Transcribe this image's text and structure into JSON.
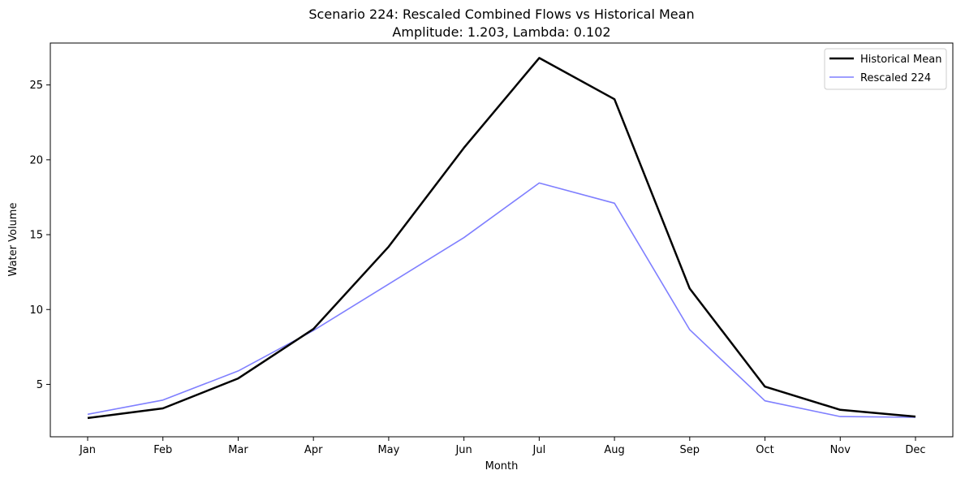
{
  "chart_data": {
    "type": "line",
    "title": "Scenario 224: Rescaled Combined Flows vs Historical Mean",
    "subtitle": "Amplitude: 1.203, Lambda: 0.102",
    "xlabel": "Month",
    "ylabel": "Water Volume",
    "categories": [
      "Jan",
      "Feb",
      "Mar",
      "Apr",
      "May",
      "Jun",
      "Jul",
      "Aug",
      "Sep",
      "Oct",
      "Nov",
      "Dec"
    ],
    "ylim": [
      1.5,
      27.8
    ],
    "yticks": [
      5,
      10,
      15,
      20,
      25
    ],
    "grid": false,
    "legend_position": "top-right",
    "series": [
      {
        "name": "Historical Mean",
        "color": "#000000",
        "values": [
          2.75,
          3.4,
          5.4,
          8.7,
          14.2,
          20.8,
          26.8,
          24.05,
          11.4,
          4.85,
          3.3,
          2.85
        ]
      },
      {
        "name": "Rescaled 224",
        "color": "#7f7fff",
        "values": [
          3.0,
          3.95,
          5.9,
          8.6,
          11.7,
          14.8,
          18.45,
          17.1,
          8.65,
          3.9,
          2.85,
          2.8
        ]
      }
    ]
  }
}
